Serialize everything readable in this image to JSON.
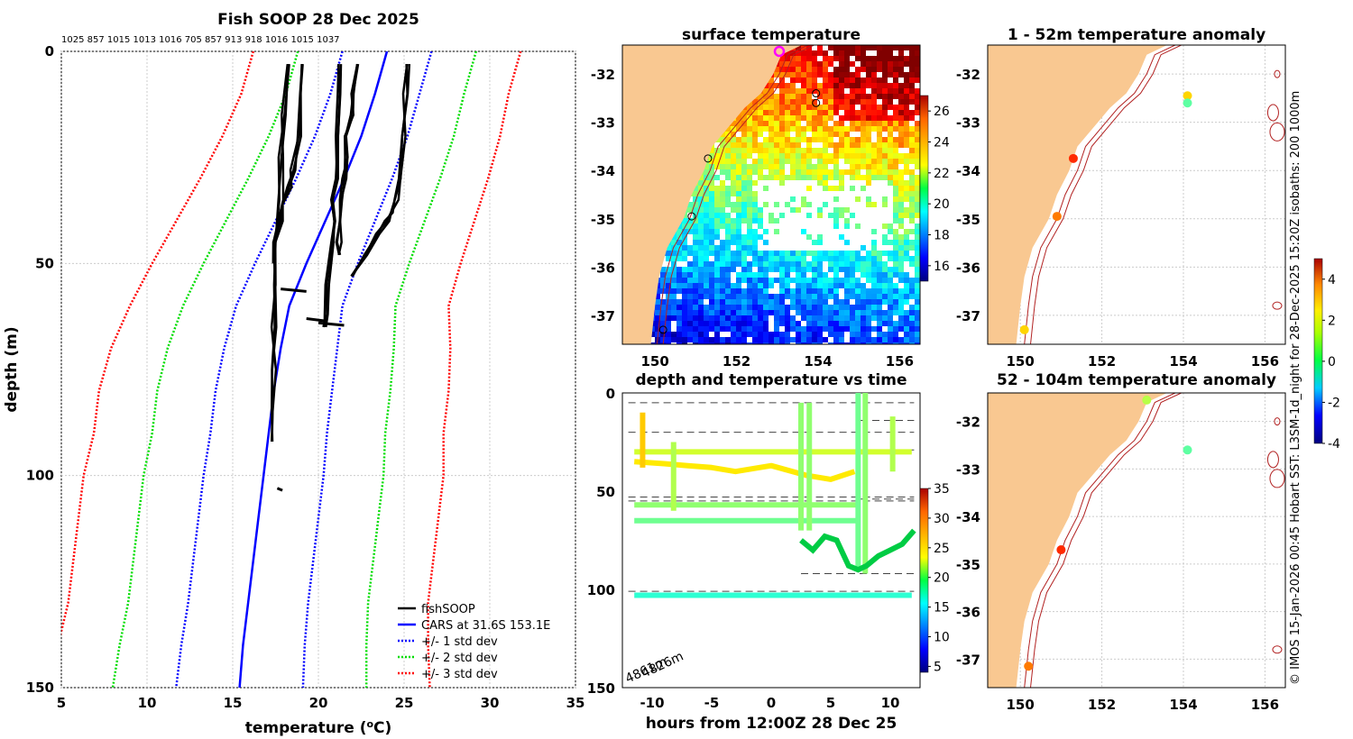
{
  "chart_data": [
    {
      "type": "line",
      "title": "Fish SOOP 28 Dec 2025",
      "top_labels": "1025 857 1015 1013 1016 705 857 913 918 1016 1015 1037",
      "xlabel": "temperature (oC)",
      "ylabel": "depth (m)",
      "xlim": [
        5,
        35
      ],
      "ylim": [
        150,
        0
      ],
      "xticks": [
        "5",
        "10",
        "15",
        "20",
        "25",
        "30",
        "35"
      ],
      "yticks": [
        "0",
        "50",
        "100",
        "150"
      ],
      "depths": [
        0,
        10,
        20,
        30,
        40,
        50,
        60,
        70,
        80,
        90,
        100,
        110,
        120,
        130,
        140,
        150
      ],
      "cars_mean": [
        24.0,
        23.3,
        22.5,
        21.5,
        20.4,
        19.3,
        18.3,
        17.8,
        17.4,
        17.1,
        16.8,
        16.5,
        16.2,
        15.9,
        15.6,
        15.4
      ],
      "std1": [
        2.6,
        2.6,
        2.7,
        2.8,
        2.9,
        3.0,
        3.1,
        3.3,
        3.4,
        3.4,
        3.5,
        3.5,
        3.5,
        3.5,
        3.6,
        3.7
      ],
      "series": [
        {
          "name": "fishSOOP",
          "color": "#000000",
          "style": "solid"
        },
        {
          "name": "CARS at 31.6S 153.1E",
          "color": "#0000ff",
          "style": "solid"
        },
        {
          "name": "+/- 1 std dev",
          "color": "#0000ff",
          "style": "dotted"
        },
        {
          "name": "+/- 2 std dev",
          "color": "#00dd00",
          "style": "dotted"
        },
        {
          "name": "+/- 3 std dev",
          "color": "#ff0000",
          "style": "dotted"
        }
      ],
      "fish_profiles": [
        {
          "t": [
            18.3,
            18.0,
            17.8,
            17.8,
            17.5,
            17.5,
            17.4,
            17.4,
            17.3,
            17.3
          ],
          "d": [
            3,
            15,
            25,
            35,
            45,
            55,
            65,
            75,
            85,
            92
          ]
        },
        {
          "t": [
            19.0,
            19.0,
            18.9,
            18.5,
            18.3,
            18.0,
            17.8,
            17.5,
            17.5
          ],
          "d": [
            3,
            10,
            20,
            28,
            32,
            36,
            40,
            45,
            50
          ]
        },
        {
          "t": [
            21.2,
            21.2,
            21.1,
            21.0,
            20.9,
            21.0,
            20.8,
            20.5,
            20.4,
            20.3
          ],
          "d": [
            3,
            10,
            20,
            30,
            35,
            40,
            45,
            55,
            62,
            65
          ]
        },
        {
          "t": [
            22.2,
            22.0,
            21.9,
            21.7,
            21.6,
            21.5,
            21.4,
            21.4,
            21.2,
            21.2
          ],
          "d": [
            3,
            10,
            15,
            20,
            25,
            30,
            35,
            40,
            45,
            48
          ]
        },
        {
          "t": [
            25.2,
            25.1,
            25.0,
            24.8,
            24.6,
            24.3,
            24.0,
            23.5,
            22.8,
            22.0
          ],
          "d": [
            3,
            10,
            20,
            30,
            35,
            38,
            40,
            43,
            48,
            53
          ]
        }
      ],
      "legend_position": "bottom-right"
    },
    {
      "type": "heatmap",
      "title": "surface temperature",
      "xticks": [
        "150",
        "152",
        "154",
        "156"
      ],
      "yticks": [
        "-32",
        "-33",
        "-34",
        "-35",
        "-36",
        "-37"
      ],
      "colorbar": {
        "min": 15,
        "max": 27,
        "ticks": [
          "16",
          "18",
          "20",
          "22",
          "24",
          "26"
        ]
      },
      "lon_range": [
        149.2,
        156.5
      ],
      "lat_range": [
        -37.5,
        -31.4
      ]
    },
    {
      "type": "scatter",
      "title": "depth and temperature vs time",
      "xlabel": "hours from 12:00Z 28 Dec 25",
      "xlim": [
        -12.5,
        12.5
      ],
      "ylim": [
        150,
        0
      ],
      "xticks": [
        "-10",
        "-5",
        "0",
        "5",
        "10"
      ],
      "yticks": [
        "0",
        "50",
        "100",
        "150"
      ],
      "colorbar": {
        "min": 4,
        "max": 35,
        "ticks": [
          "5",
          "10",
          "15",
          "20",
          "25",
          "30",
          "35"
        ]
      },
      "depth_annotations": [
        "4861m",
        "4826m"
      ],
      "tracks": [
        {
          "x": [
            -11.5,
            11.8
          ],
          "y": [
            103,
            103
          ],
          "temp": 17
        },
        {
          "x": [
            -11.5,
            7.5
          ],
          "y": [
            65,
            65
          ],
          "temp": 19
        },
        {
          "x": [
            -11.5,
            7.5
          ],
          "y": [
            57,
            57
          ],
          "temp": 20
        },
        {
          "x": [
            -11.5,
            11.8
          ],
          "y": [
            30,
            30
          ],
          "temp": 22
        },
        {
          "x": [
            -11.5,
            -9,
            -7,
            -5,
            -3,
            0,
            3,
            5,
            7
          ],
          "y": [
            35,
            36,
            37,
            38,
            40,
            37,
            42,
            44,
            40
          ],
          "temp": 24
        }
      ]
    },
    {
      "type": "scatter",
      "title": "1 - 52m temperature anomaly",
      "xticks": [
        "150",
        "152",
        "154",
        "156"
      ],
      "yticks": [
        "-32",
        "-33",
        "-34",
        "-35",
        "-36",
        "-37"
      ],
      "points": [
        {
          "lon": 154.1,
          "lat": -32.45,
          "anom": 2
        },
        {
          "lon": 154.1,
          "lat": -32.6,
          "anom": 0.2
        },
        {
          "lon": 151.3,
          "lat": -33.75,
          "anom": 3.5
        },
        {
          "lon": 150.9,
          "lat": -34.95,
          "anom": 2.8
        },
        {
          "lon": 150.1,
          "lat": -37.3,
          "anom": 2
        }
      ]
    },
    {
      "type": "scatter",
      "title": "52 - 104m temperature anomaly",
      "xticks": [
        "150",
        "152",
        "154",
        "156"
      ],
      "yticks": [
        "-32",
        "-33",
        "-34",
        "-35",
        "-36",
        "-37"
      ],
      "colorbar": {
        "min": -4,
        "max": 5,
        "ticks": [
          "-4",
          "-2",
          "0",
          "2",
          "4"
        ]
      },
      "points": [
        {
          "lon": 153.1,
          "lat": -31.55,
          "anom": 1
        },
        {
          "lon": 154.1,
          "lat": -32.6,
          "anom": 0.2
        },
        {
          "lon": 151.0,
          "lat": -34.7,
          "anom": 3.5
        },
        {
          "lon": 150.2,
          "lat": -37.15,
          "anom": 2.8
        }
      ]
    }
  ],
  "credit": "© IMOS 15-Jan-2026 00:45 Hobart SST: L3SM-1d_night for 28-Dec-2025 15:20Z isobaths: 200  1000m"
}
